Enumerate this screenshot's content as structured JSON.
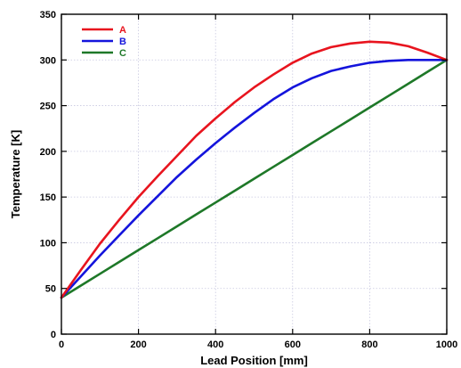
{
  "chart_data": {
    "type": "line",
    "title": "",
    "xlabel": "Lead Position  [mm]",
    "ylabel": "Temperature  [K]",
    "xlim": [
      0,
      1000
    ],
    "ylim": [
      0,
      350
    ],
    "xticks": [
      0,
      200,
      400,
      600,
      800,
      1000
    ],
    "yticks": [
      0,
      50,
      100,
      150,
      200,
      250,
      300,
      350
    ],
    "grid": true,
    "legend_position": "top-left",
    "x": [
      0,
      50,
      100,
      150,
      200,
      250,
      300,
      350,
      400,
      450,
      500,
      550,
      600,
      650,
      700,
      750,
      800,
      850,
      900,
      950,
      1000
    ],
    "series": [
      {
        "name": "A",
        "color": "#e8141e",
        "values": [
          40,
          70,
          99,
          125,
          150,
          173,
          195,
          217,
          236,
          254,
          270,
          284,
          297,
          307,
          314,
          318,
          320,
          319,
          315,
          308,
          300
        ]
      },
      {
        "name": "B",
        "color": "#1414dc",
        "values": [
          40,
          63,
          86,
          108,
          130,
          151,
          172,
          191,
          209,
          226,
          242,
          257,
          270,
          280,
          288,
          293,
          297,
          299,
          300,
          300,
          300
        ]
      },
      {
        "name": "C",
        "color": "#1e7828",
        "values": [
          40,
          53,
          66,
          79,
          92,
          105,
          118,
          131,
          144,
          157,
          170,
          183,
          196,
          209,
          222,
          235,
          248,
          261,
          274,
          287,
          300
        ]
      }
    ]
  }
}
